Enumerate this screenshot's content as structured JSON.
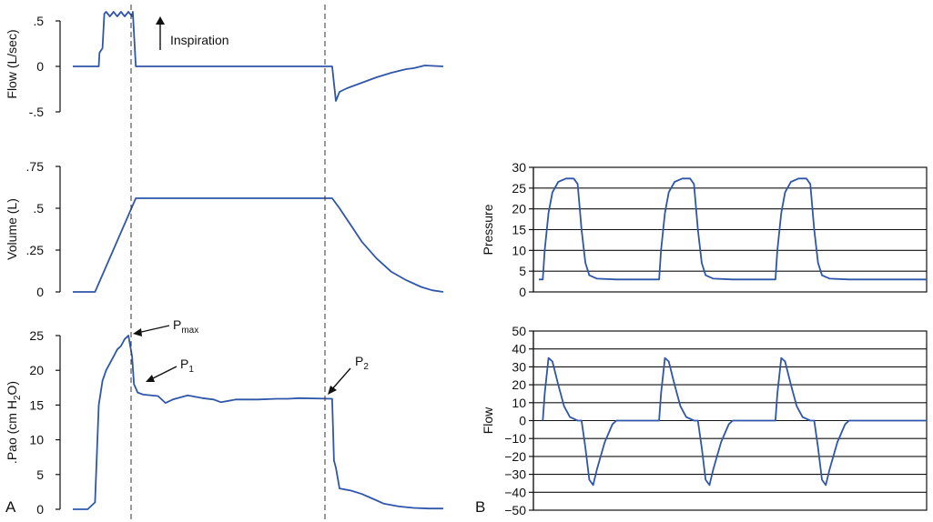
{
  "panel_labels": {
    "left": "A",
    "right": "B"
  },
  "chart_data": [
    {
      "id": "flow_a",
      "type": "line",
      "ylabel": "Flow (L/sec)",
      "yticks": [
        ".5",
        "0",
        "-.5"
      ],
      "ytick_values": [
        0.5,
        0,
        -0.5
      ],
      "ylim": [
        -0.5,
        0.55
      ],
      "xlim": [
        0,
        100
      ],
      "series": [
        {
          "points": [
            [
              0,
              0
            ],
            [
              7,
              0
            ],
            [
              7.2,
              0.15
            ],
            [
              8,
              0.2
            ],
            [
              8.5,
              0.58
            ],
            [
              9,
              0.6
            ],
            [
              10,
              0.55
            ],
            [
              11,
              0.6
            ],
            [
              12,
              0.55
            ],
            [
              13,
              0.6
            ],
            [
              14,
              0.55
            ],
            [
              15,
              0.6
            ],
            [
              16,
              0.55
            ],
            [
              16.2,
              0.6
            ],
            [
              17,
              0
            ],
            [
              51,
              0
            ],
            [
              55,
              0
            ],
            [
              70,
              0
            ],
            [
              71,
              -0.38
            ],
            [
              72,
              -0.28
            ],
            [
              74,
              -0.24
            ],
            [
              78,
              -0.18
            ],
            [
              82,
              -0.12
            ],
            [
              86,
              -0.07
            ],
            [
              90,
              -0.03
            ],
            [
              92,
              -0.02
            ],
            [
              95,
              0.01
            ],
            [
              100,
              0
            ]
          ]
        }
      ]
    },
    {
      "id": "volume_a",
      "type": "line",
      "ylabel": "Volume (L)",
      "yticks": [
        ".75",
        ".5",
        ".25",
        "0"
      ],
      "ytick_values": [
        0.75,
        0.5,
        0.25,
        0
      ],
      "ylim": [
        0,
        0.75
      ],
      "xlim": [
        0,
        100
      ],
      "series": [
        {
          "points": [
            [
              0,
              0
            ],
            [
              6,
              0
            ],
            [
              17,
              0.56
            ],
            [
              70,
              0.56
            ],
            [
              72,
              0.5
            ],
            [
              75,
              0.4
            ],
            [
              78,
              0.3
            ],
            [
              82,
              0.2
            ],
            [
              86,
              0.12
            ],
            [
              90,
              0.07
            ],
            [
              94,
              0.03
            ],
            [
              97,
              0.01
            ],
            [
              100,
              0
            ]
          ]
        }
      ]
    },
    {
      "id": "pao_a",
      "type": "line",
      "ylabel": ".Pao (cm H2O)",
      "yticks": [
        "25",
        "20",
        "15",
        "10",
        "5",
        "0"
      ],
      "ytick_values": [
        25,
        20,
        15,
        10,
        5,
        0
      ],
      "ylim": [
        0,
        25
      ],
      "xlim": [
        0,
        100
      ],
      "series": [
        {
          "points": [
            [
              0,
              0
            ],
            [
              4,
              0
            ],
            [
              6,
              1
            ],
            [
              7,
              15
            ],
            [
              8,
              18.5
            ],
            [
              9,
              20
            ],
            [
              10,
              21
            ],
            [
              11,
              22
            ],
            [
              12,
              23
            ],
            [
              13,
              23.5
            ],
            [
              14,
              24.5
            ],
            [
              15,
              25
            ],
            [
              16,
              22
            ],
            [
              16.5,
              18
            ],
            [
              17.5,
              16.8
            ],
            [
              19,
              16.5
            ],
            [
              23,
              16.3
            ],
            [
              25,
              15.3
            ],
            [
              27,
              15.8
            ],
            [
              31,
              16.4
            ],
            [
              35,
              16
            ],
            [
              38,
              15.8
            ],
            [
              40,
              15.4
            ],
            [
              44,
              15.8
            ],
            [
              50,
              15.8
            ],
            [
              55,
              15.9
            ],
            [
              58,
              15.9
            ],
            [
              61,
              16
            ],
            [
              70,
              15.9
            ],
            [
              70.5,
              7
            ],
            [
              71,
              6
            ],
            [
              72,
              3
            ],
            [
              75,
              2.7
            ],
            [
              78,
              2.2
            ],
            [
              81,
              1.5
            ],
            [
              84,
              0.8
            ],
            [
              88,
              0.4
            ],
            [
              92,
              0.2
            ],
            [
              96,
              0.1
            ],
            [
              100,
              0.1
            ]
          ]
        }
      ],
      "annotations": [
        {
          "label": "P",
          "sub": "max"
        },
        {
          "label": "P",
          "sub": "1"
        },
        {
          "label": "P",
          "sub": "2"
        }
      ]
    },
    {
      "id": "pressure_b",
      "type": "line",
      "ylabel": "Pressure",
      "yticks": [
        "30",
        "25",
        "20",
        "15",
        "10",
        "5",
        "0"
      ],
      "ytick_values": [
        30,
        25,
        20,
        15,
        10,
        5,
        0
      ],
      "ylim": [
        0,
        30
      ],
      "xlim": [
        0,
        100
      ],
      "grid": true,
      "series": [
        {
          "points": [
            [
              0,
              3
            ],
            [
              1,
              3
            ],
            [
              1.5,
              10
            ],
            [
              2.5,
              19
            ],
            [
              3.5,
              24
            ],
            [
              5,
              26.5
            ],
            [
              7,
              27.3
            ],
            [
              9,
              27.3
            ],
            [
              10,
              26
            ],
            [
              11,
              15
            ],
            [
              12,
              7
            ],
            [
              13,
              4
            ],
            [
              15,
              3.2
            ],
            [
              20,
              3
            ],
            [
              30,
              3
            ],
            [
              31,
              3
            ],
            [
              31.5,
              10
            ],
            [
              32.5,
              19
            ],
            [
              33.5,
              24
            ],
            [
              35,
              26.5
            ],
            [
              37,
              27.3
            ],
            [
              39,
              27.3
            ],
            [
              40,
              26
            ],
            [
              41,
              15
            ],
            [
              42,
              7
            ],
            [
              43,
              4
            ],
            [
              45,
              3.2
            ],
            [
              50,
              3
            ],
            [
              60,
              3
            ],
            [
              61,
              3
            ],
            [
              61.5,
              10
            ],
            [
              62.5,
              19
            ],
            [
              63.5,
              24
            ],
            [
              65,
              26.5
            ],
            [
              67,
              27.3
            ],
            [
              69,
              27.3
            ],
            [
              70,
              26
            ],
            [
              71,
              15
            ],
            [
              72,
              7
            ],
            [
              73,
              4
            ],
            [
              75,
              3.2
            ],
            [
              80,
              3
            ],
            [
              90,
              3
            ],
            [
              100,
              3
            ]
          ]
        }
      ]
    },
    {
      "id": "flow_b",
      "type": "line",
      "ylabel": "Flow",
      "yticks": [
        "50",
        "40",
        "30",
        "20",
        "10",
        "0",
        "−10",
        "−20",
        "−30",
        "−40",
        "−50"
      ],
      "ytick_values": [
        50,
        40,
        30,
        20,
        10,
        0,
        -10,
        -20,
        -30,
        -40,
        -50
      ],
      "ylim": [
        -50,
        50
      ],
      "xlim": [
        0,
        100
      ],
      "grid": true,
      "series": [
        {
          "points": [
            [
              1,
              0
            ],
            [
              1.5,
              15
            ],
            [
              2.5,
              35
            ],
            [
              3.5,
              33
            ],
            [
              5,
              20
            ],
            [
              6.5,
              8
            ],
            [
              8,
              2
            ],
            [
              10,
              0
            ],
            [
              11,
              0
            ],
            [
              12,
              -15
            ],
            [
              13,
              -33
            ],
            [
              14,
              -36
            ],
            [
              15,
              -27
            ],
            [
              17,
              -12
            ],
            [
              19,
              -2
            ],
            [
              20,
              0
            ],
            [
              29,
              0
            ],
            [
              31,
              0
            ],
            [
              31.5,
              15
            ],
            [
              32.5,
              35
            ],
            [
              33.5,
              33
            ],
            [
              35,
              20
            ],
            [
              36.5,
              8
            ],
            [
              38,
              2
            ],
            [
              40,
              0
            ],
            [
              41,
              0
            ],
            [
              42,
              -15
            ],
            [
              43,
              -33
            ],
            [
              44,
              -36
            ],
            [
              45,
              -27
            ],
            [
              47,
              -12
            ],
            [
              49,
              -2
            ],
            [
              50,
              0
            ],
            [
              59,
              0
            ],
            [
              61,
              0
            ],
            [
              61.5,
              15
            ],
            [
              62.5,
              35
            ],
            [
              63.5,
              33
            ],
            [
              65,
              20
            ],
            [
              66.5,
              8
            ],
            [
              68,
              2
            ],
            [
              70,
              0
            ],
            [
              71,
              0
            ],
            [
              72,
              -15
            ],
            [
              73,
              -33
            ],
            [
              74,
              -36
            ],
            [
              75,
              -27
            ],
            [
              77,
              -12
            ],
            [
              79,
              -2
            ],
            [
              80,
              0
            ],
            [
              89,
              0
            ],
            [
              100,
              0
            ]
          ]
        }
      ]
    }
  ],
  "annotations": {
    "inspiration": "Inspiration",
    "pmax": {
      "main": "P",
      "sub": "max"
    },
    "p1": {
      "main": "P",
      "sub": "1"
    },
    "p2": {
      "main": "P",
      "sub": "2"
    }
  }
}
